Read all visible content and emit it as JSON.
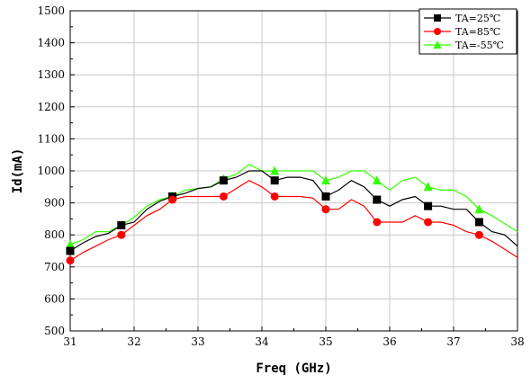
{
  "chart_data": {
    "type": "line",
    "xlabel": "Freq (GHz)",
    "ylabel": "Id(mA)",
    "xlim": [
      31,
      38
    ],
    "ylim": [
      500,
      1500
    ],
    "xticks": [
      31,
      32,
      33,
      34,
      35,
      36,
      37,
      38
    ],
    "yticks": [
      500,
      600,
      700,
      800,
      900,
      1000,
      1100,
      1200,
      1300,
      1400,
      1500
    ],
    "grid": true,
    "legend_position": "top-right",
    "series": [
      {
        "name": "TA=25℃",
        "color": "#000000",
        "marker": "square",
        "x": [
          31,
          31.2,
          31.4,
          31.6,
          31.8,
          32.0,
          32.2,
          32.4,
          32.6,
          32.8,
          33.0,
          33.2,
          33.4,
          33.6,
          33.8,
          34.0,
          34.2,
          34.4,
          34.6,
          34.8,
          35.0,
          35.2,
          35.4,
          35.6,
          35.8,
          36.0,
          36.2,
          36.4,
          36.6,
          36.8,
          37.0,
          37.2,
          37.4,
          37.6,
          37.8,
          38.0
        ],
        "y": [
          750,
          775,
          795,
          805,
          830,
          840,
          880,
          905,
          920,
          930,
          945,
          950,
          970,
          980,
          1000,
          1000,
          970,
          980,
          980,
          970,
          920,
          940,
          970,
          950,
          910,
          890,
          910,
          920,
          890,
          890,
          880,
          880,
          840,
          810,
          800,
          765
        ],
        "marker_x": [
          31,
          31.8,
          32.6,
          33.4,
          34.2,
          35.0,
          35.8,
          36.6,
          37.4
        ],
        "marker_y": [
          750,
          830,
          920,
          970,
          970,
          920,
          910,
          890,
          840
        ]
      },
      {
        "name": "TA=85℃",
        "color": "#ff0000",
        "marker": "circle",
        "x": [
          31,
          31.2,
          31.4,
          31.6,
          31.8,
          32.0,
          32.2,
          32.4,
          32.6,
          32.8,
          33.0,
          33.2,
          33.4,
          33.6,
          33.8,
          34.0,
          34.2,
          34.4,
          34.6,
          34.8,
          35.0,
          35.2,
          35.4,
          35.6,
          35.8,
          36.0,
          36.2,
          36.4,
          36.6,
          36.8,
          37.0,
          37.2,
          37.4,
          37.6,
          37.8,
          38.0
        ],
        "y": [
          720,
          745,
          765,
          785,
          800,
          830,
          860,
          880,
          910,
          920,
          920,
          920,
          920,
          945,
          970,
          950,
          920,
          920,
          920,
          915,
          880,
          880,
          910,
          890,
          840,
          840,
          840,
          860,
          840,
          840,
          830,
          810,
          800,
          780,
          755,
          730
        ],
        "marker_x": [
          31,
          31.8,
          32.6,
          33.4,
          34.2,
          35.0,
          35.8,
          36.6,
          37.4
        ],
        "marker_y": [
          720,
          800,
          910,
          920,
          920,
          880,
          840,
          840,
          800
        ]
      },
      {
        "name": "TA=-55℃",
        "color": "#33ff00",
        "marker": "triangle",
        "x": [
          31,
          31.2,
          31.4,
          31.6,
          31.8,
          32.0,
          32.2,
          32.4,
          32.6,
          32.8,
          33.0,
          33.2,
          33.4,
          33.6,
          33.8,
          34.0,
          34.2,
          34.4,
          34.6,
          34.8,
          35.0,
          35.2,
          35.4,
          35.6,
          35.8,
          36.0,
          36.2,
          36.4,
          36.6,
          36.8,
          37.0,
          37.2,
          37.4,
          37.6,
          37.8,
          38.0
        ],
        "y": [
          770,
          785,
          810,
          810,
          830,
          855,
          890,
          910,
          920,
          940,
          945,
          950,
          975,
          990,
          1020,
          1000,
          1000,
          1000,
          1000,
          1000,
          970,
          980,
          1000,
          1000,
          970,
          940,
          970,
          980,
          950,
          940,
          940,
          920,
          880,
          860,
          835,
          810
        ],
        "marker_x": [
          31,
          31.8,
          32.6,
          33.4,
          34.2,
          35.0,
          35.8,
          36.6,
          37.4
        ],
        "marker_y": [
          770,
          830,
          920,
          975,
          1000,
          970,
          970,
          950,
          880
        ]
      }
    ]
  }
}
